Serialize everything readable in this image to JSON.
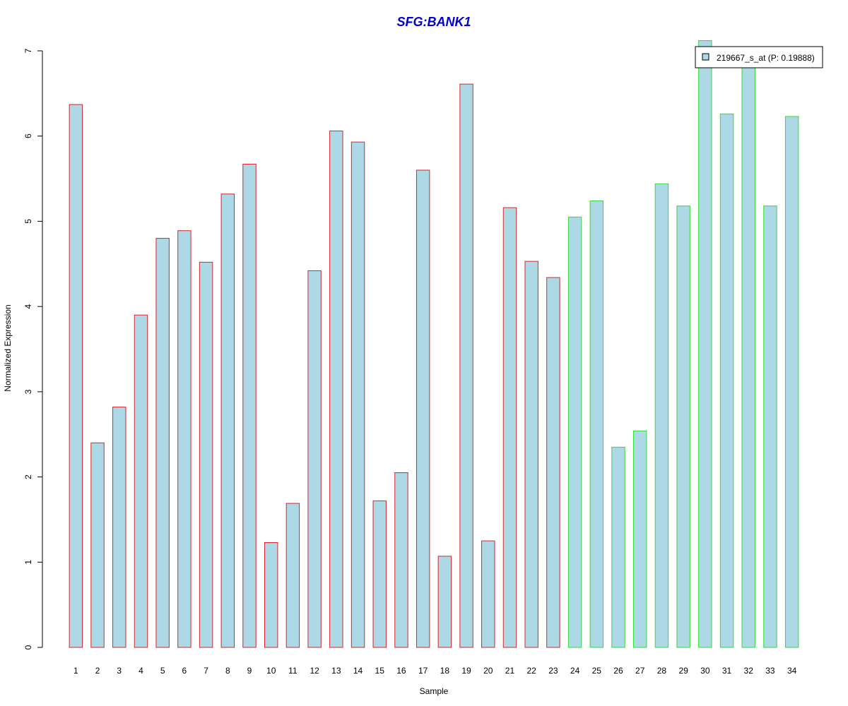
{
  "chart_data": {
    "type": "bar",
    "title": "SFG:BANK1",
    "xlabel": "Sample",
    "ylabel": "Normalized Expression",
    "ylim": [
      0,
      7
    ],
    "yticks": [
      0,
      1,
      2,
      3,
      4,
      5,
      6,
      7
    ],
    "categories": [
      "1",
      "2",
      "3",
      "4",
      "5",
      "6",
      "7",
      "8",
      "9",
      "10",
      "11",
      "12",
      "13",
      "14",
      "15",
      "16",
      "17",
      "18",
      "19",
      "20",
      "21",
      "22",
      "23",
      "24",
      "25",
      "26",
      "27",
      "28",
      "29",
      "30",
      "31",
      "32",
      "33",
      "34"
    ],
    "series": [
      {
        "name": "219667_s_at (P: 0.19888)",
        "values": [
          6.37,
          2.4,
          2.82,
          3.9,
          4.8,
          4.89,
          4.52,
          5.32,
          5.67,
          1.23,
          1.69,
          4.42,
          6.06,
          5.93,
          1.72,
          2.05,
          5.6,
          1.07,
          6.61,
          1.25,
          5.16,
          4.53,
          4.34,
          5.05,
          5.24,
          2.35,
          2.54,
          5.44,
          5.18,
          7.12,
          6.26,
          6.93,
          5.18,
          6.23
        ],
        "groups": [
          "case",
          "case",
          "case",
          "case",
          "case",
          "case",
          "case",
          "case",
          "case",
          "case",
          "case",
          "case",
          "case",
          "case",
          "case",
          "case",
          "case",
          "case",
          "case",
          "case",
          "case",
          "case",
          "case",
          "control",
          "control",
          "control",
          "control",
          "control",
          "control",
          "control",
          "control",
          "control",
          "control",
          "control"
        ]
      }
    ],
    "legend": {
      "position": "top-right",
      "label": "219667_s_at (P: 0.19888)"
    },
    "grid": false,
    "colors": {
      "fill": "#add8e6",
      "border_case": "#d62728",
      "border_control": "#33dd33",
      "title": "#0000cc",
      "axis": "#000000"
    }
  }
}
